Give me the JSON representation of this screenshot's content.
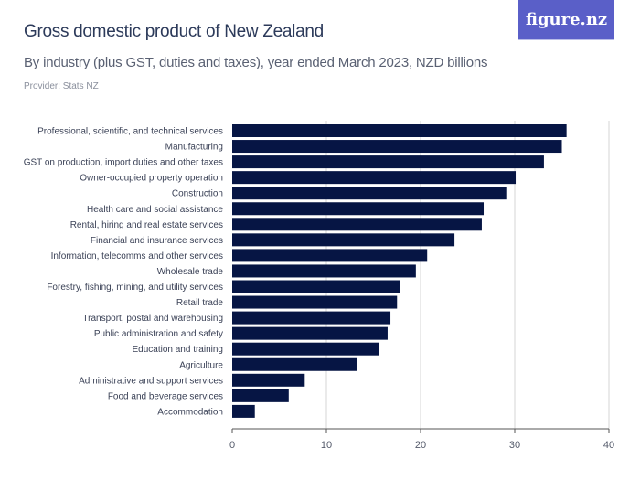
{
  "header": {
    "title": "Gross domestic product of New Zealand",
    "subtitle": "By industry (plus GST, duties and taxes), year ended March 2023, NZD billions",
    "provider": "Provider: Stats NZ",
    "logo_text": "figure.nz"
  },
  "colors": {
    "bar": "#061544",
    "logo_bg": "#5a5fc8",
    "grid": "#d6d6d6",
    "axis": "#555555"
  },
  "chart_data": {
    "type": "bar",
    "orientation": "horizontal",
    "title": "Gross domestic product of New Zealand",
    "subtitle": "By industry (plus GST, duties and taxes), year ended March 2023, NZD billions",
    "xlabel": "",
    "ylabel": "",
    "xlim": [
      0,
      40
    ],
    "xticks": [
      0,
      10,
      20,
      30,
      40
    ],
    "xtick_labels": [
      "0",
      "10",
      "20",
      "30",
      "40"
    ],
    "grid": true,
    "categories": [
      "Professional, scientific, and technical services",
      "Manufacturing",
      "GST on production, import duties and other taxes",
      "Owner-occupied property operation",
      "Construction",
      "Health care and social assistance",
      "Rental, hiring and real estate services",
      "Financial and insurance services",
      "Information, telecomms and other services",
      "Wholesale trade",
      "Forestry, fishing, mining, and utility services",
      "Retail trade",
      "Transport, postal and warehousing",
      "Public administration and safety",
      "Education and training",
      "Agriculture",
      "Administrative and support services",
      "Food and beverage services",
      "Accommodation"
    ],
    "values": [
      35.5,
      35.0,
      33.1,
      30.1,
      29.1,
      26.7,
      26.5,
      23.6,
      20.7,
      19.5,
      17.8,
      17.5,
      16.8,
      16.5,
      15.6,
      13.3,
      7.7,
      6.0,
      2.4
    ]
  }
}
